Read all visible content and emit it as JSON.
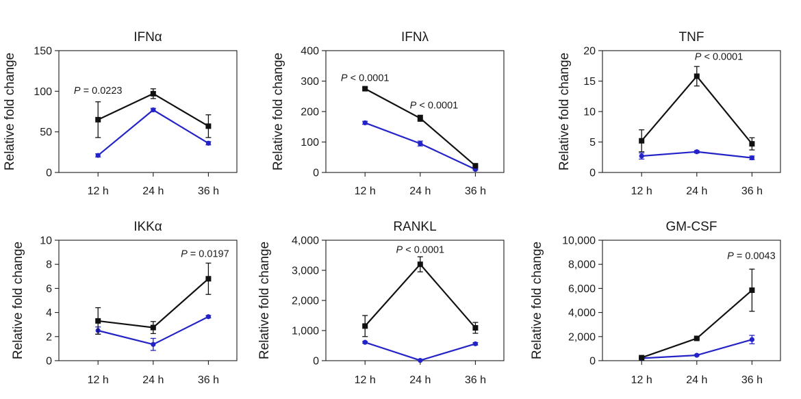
{
  "chart_data": [
    {
      "type": "line",
      "title": "IFNα",
      "ylabel": "Relative fold change",
      "categories": [
        "12 h",
        "24 h",
        "36 h"
      ],
      "ylim": [
        0,
        150
      ],
      "yticks": [
        0,
        50,
        100,
        150
      ],
      "ytick_labels": [
        "0",
        "50",
        "100",
        "150"
      ],
      "series": [
        {
          "name": "black",
          "color": "#111111",
          "marker": "square",
          "values": [
            65,
            97,
            57
          ],
          "errors": [
            22,
            6,
            14
          ]
        },
        {
          "name": "blue",
          "color": "#2323c8",
          "marker": "circle",
          "values": [
            21,
            77,
            36
          ],
          "errors": [
            2,
            2,
            2
          ]
        }
      ],
      "annotation": {
        "prefix": "P",
        "text": " = 0.0223",
        "category": 0,
        "y": 97,
        "anchor": "middle"
      }
    },
    {
      "type": "line",
      "title": "IFNλ",
      "ylabel": "Relative fold change",
      "categories": [
        "12 h",
        "24 h",
        "36 h"
      ],
      "ylim": [
        0,
        400
      ],
      "yticks": [
        0,
        100,
        200,
        300,
        400
      ],
      "ytick_labels": [
        "0",
        "100",
        "200",
        "300",
        "400"
      ],
      "series": [
        {
          "name": "black",
          "color": "#111111",
          "marker": "square",
          "values": [
            275,
            178,
            22
          ],
          "errors": [
            5,
            10,
            3
          ]
        },
        {
          "name": "blue",
          "color": "#2323c8",
          "marker": "circle",
          "values": [
            163,
            95,
            10
          ],
          "errors": [
            5,
            8,
            2
          ]
        }
      ],
      "annotation": [
        {
          "prefix": "P",
          "text": " < 0.0001",
          "category": 0,
          "y": 300,
          "anchor": "middle"
        },
        {
          "prefix": "P",
          "text": " < 0.0001",
          "category": 1.25,
          "y": 210,
          "anchor": "middle"
        }
      ]
    },
    {
      "type": "line",
      "title": "TNF",
      "ylabel": "Relative fold change",
      "categories": [
        "12 h",
        "24 h",
        "36 h"
      ],
      "ylim": [
        0,
        20
      ],
      "yticks": [
        0,
        5,
        10,
        15,
        20
      ],
      "ytick_labels": [
        "0",
        "5",
        "10",
        "15",
        "20"
      ],
      "series": [
        {
          "name": "black",
          "color": "#111111",
          "marker": "square",
          "values": [
            5.2,
            15.8,
            4.7
          ],
          "errors": [
            1.8,
            1.6,
            1.0
          ]
        },
        {
          "name": "blue",
          "color": "#2323c8",
          "marker": "circle",
          "values": [
            2.7,
            3.4,
            2.4
          ],
          "errors": [
            0.5,
            0.2,
            0.3
          ]
        }
      ],
      "annotation": {
        "prefix": "P",
        "text": " < 0.0001",
        "category": 1.4,
        "y": 18.5,
        "anchor": "middle"
      }
    },
    {
      "type": "line",
      "title": "IKKα",
      "ylabel": "Relative fold change",
      "categories": [
        "12 h",
        "24 h",
        "36 h"
      ],
      "ylim": [
        0,
        10
      ],
      "yticks": [
        0,
        2,
        4,
        6,
        8,
        10
      ],
      "ytick_labels": [
        "0",
        "2",
        "4",
        "6",
        "8",
        "10"
      ],
      "series": [
        {
          "name": "black",
          "color": "#111111",
          "marker": "square",
          "values": [
            3.3,
            2.75,
            6.8
          ],
          "errors": [
            1.1,
            0.5,
            1.3
          ]
        },
        {
          "name": "blue",
          "color": "#2323c8",
          "marker": "circle",
          "values": [
            2.5,
            1.35,
            3.65
          ],
          "errors": [
            0.3,
            0.5,
            0.1
          ]
        }
      ],
      "annotation": {
        "prefix": "P",
        "text": " = 0.0197",
        "category": 1.5,
        "y": 8.6,
        "anchor": "start"
      }
    },
    {
      "type": "line",
      "title": "RANKL",
      "ylabel": "Relative fold change",
      "categories": [
        "12 h",
        "24 h",
        "36 h"
      ],
      "ylim": [
        0,
        4000
      ],
      "yticks": [
        0,
        1000,
        2000,
        3000,
        4000
      ],
      "ytick_labels": [
        "0",
        "1,000",
        "2,000",
        "3,000",
        "4,000"
      ],
      "series": [
        {
          "name": "black",
          "color": "#111111",
          "marker": "square",
          "values": [
            1150,
            3200,
            1090
          ],
          "errors": [
            350,
            250,
            180
          ]
        },
        {
          "name": "blue",
          "color": "#2323c8",
          "marker": "circle",
          "values": [
            610,
            10,
            560
          ],
          "errors": [
            30,
            10,
            40
          ]
        }
      ],
      "annotation": {
        "prefix": "P",
        "text": " < 0.0001",
        "category": 1,
        "y": 3580,
        "anchor": "middle"
      }
    },
    {
      "type": "line",
      "title": "GM-CSF",
      "ylabel": "Relative fold change",
      "categories": [
        "12 h",
        "24 h",
        "36 h"
      ],
      "ylim": [
        0,
        10000
      ],
      "yticks": [
        0,
        2000,
        4000,
        6000,
        8000,
        10000
      ],
      "ytick_labels": [
        "0",
        "2,000",
        "4,000",
        "6,000",
        "8,000",
        "10,000"
      ],
      "series": [
        {
          "name": "black",
          "color": "#111111",
          "marker": "square",
          "values": [
            250,
            1850,
            5850
          ],
          "errors": [
            50,
            80,
            1750
          ]
        },
        {
          "name": "blue",
          "color": "#2323c8",
          "marker": "circle",
          "values": [
            200,
            450,
            1750
          ],
          "errors": [
            50,
            50,
            350
          ]
        }
      ],
      "annotation": {
        "prefix": "P",
        "text": " = 0.0043",
        "category": 1.55,
        "y": 8450,
        "anchor": "start"
      }
    }
  ]
}
